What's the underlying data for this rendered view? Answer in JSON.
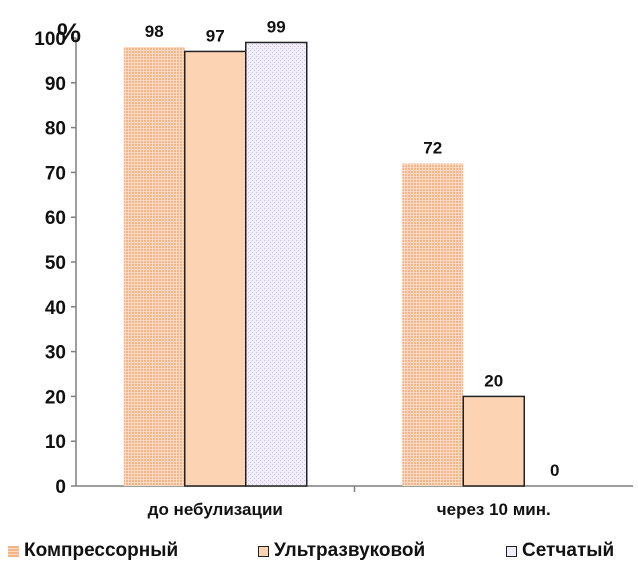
{
  "chart_data": {
    "type": "bar",
    "ylabel": "%",
    "ylim": [
      0,
      100
    ],
    "yticks": [
      "0",
      "10",
      "20",
      "30",
      "40",
      "50",
      "60",
      "70",
      "80",
      "90",
      "100"
    ],
    "categories": [
      "до небулизации",
      "через 10 мин."
    ],
    "series": [
      {
        "name": "Компрессорный",
        "values": [
          98,
          72
        ],
        "labels": [
          "98",
          "72"
        ]
      },
      {
        "name": "Ультразвуковой",
        "values": [
          97,
          20
        ],
        "labels": [
          "97",
          "20"
        ]
      },
      {
        "name": "Сетчатый",
        "values": [
          99,
          0
        ],
        "labels": [
          "99",
          "0"
        ]
      }
    ],
    "grid": false,
    "legend_position": "bottom"
  },
  "colors": {
    "kompressorny": "#f6b489",
    "ultrazvukovoy": "#fcd3b3",
    "setchaty": "#efecf8",
    "axis": "#7f7f7f",
    "text": "#111111"
  }
}
